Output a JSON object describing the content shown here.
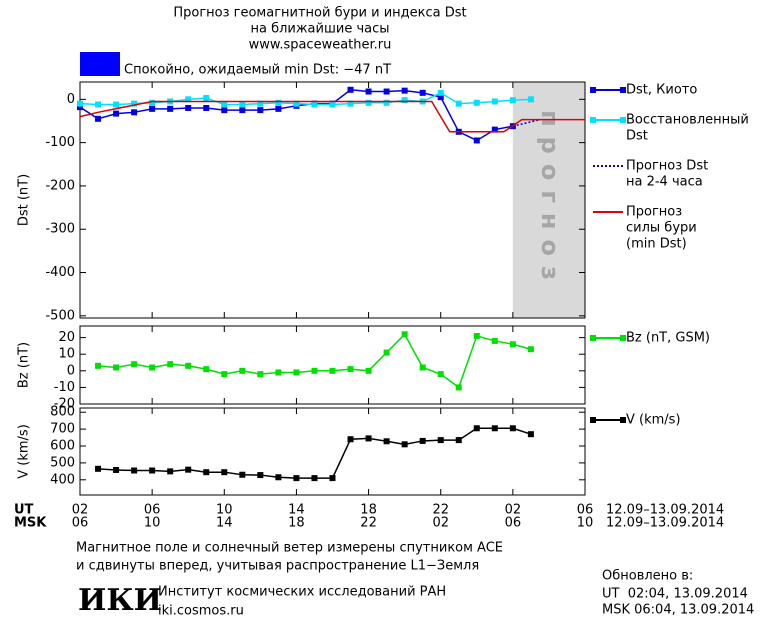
{
  "header": {
    "title": [
      "Прогноз геомагнитной бури и индекса Dst",
      "на ближайшие часы"
    ],
    "site": "www.spaceweather.ru"
  },
  "status": {
    "text": "Спокойно, ожидаемый min Dst: −47 nT",
    "color": "#0000ff"
  },
  "x_axis": {
    "ut_label": "UT",
    "msk_label": "MSK",
    "msk_labels": [
      "06",
      "10",
      "14",
      "18",
      "22",
      "02",
      "06",
      "10"
    ],
    "ut_range": "12.09–13.09.2014",
    "msk_range": "12.09–13.09.2014"
  },
  "chart_data": [
    {
      "type": "line",
      "ylabel": "Dst (nT)",
      "xlim": [
        0,
        28
      ],
      "ylim": [
        -505,
        40
      ],
      "xticks": [
        {
          "value": 0,
          "label": "02"
        },
        {
          "value": 4,
          "label": "06"
        },
        {
          "value": 8,
          "label": "10"
        },
        {
          "value": 12,
          "label": "14"
        },
        {
          "value": 16,
          "label": "18"
        },
        {
          "value": 20,
          "label": "22"
        },
        {
          "value": 24,
          "label": "02"
        },
        {
          "value": 28,
          "label": "06"
        }
      ],
      "yticks": [
        0,
        -100,
        -200,
        -300,
        -400,
        -500
      ],
      "forecast": {
        "x": [
          24,
          28
        ],
        "label": "прогноз",
        "color": "#d9d9d9"
      },
      "series": [
        {
          "name": [
            "Dst, Киото"
          ],
          "color": "#0000e0",
          "marker": "square",
          "dash": "solid",
          "x": [
            0,
            1,
            2,
            3,
            4,
            5,
            6,
            7,
            8,
            9,
            10,
            11,
            12,
            13,
            14,
            15,
            16,
            17,
            18,
            19,
            20,
            21,
            22,
            23,
            24
          ],
          "values": [
            -18,
            -45,
            -33,
            -30,
            -22,
            -22,
            -20,
            -20,
            -25,
            -25,
            -25,
            -22,
            -15,
            -10,
            -10,
            22,
            18,
            18,
            20,
            15,
            5,
            -75,
            -95,
            -70,
            -62
          ]
        },
        {
          "name": [
            "Восстановленный",
            "Dst"
          ],
          "color": "#00e0ff",
          "marker": "square",
          "dash": "solid",
          "x": [
            0,
            1,
            2,
            3,
            4,
            5,
            6,
            7,
            8,
            9,
            10,
            11,
            12,
            13,
            14,
            15,
            16,
            17,
            18,
            19,
            20,
            21,
            22,
            23,
            24,
            25
          ],
          "values": [
            -10,
            -12,
            -12,
            -10,
            -8,
            -5,
            0,
            3,
            -12,
            -12,
            -10,
            -8,
            -10,
            -12,
            -12,
            -10,
            -8,
            -8,
            -2,
            -5,
            15,
            -10,
            -8,
            -5,
            -2,
            0
          ]
        },
        {
          "name": [
            "Прогноз Dst",
            "на 2-4 часа"
          ],
          "color": "#0000e0",
          "marker": "none",
          "dash": "dotted",
          "x": [
            24,
            25.5
          ],
          "values": [
            -62,
            -47
          ]
        },
        {
          "name": [
            "Прогноз",
            "силы бури",
            "(min Dst)"
          ],
          "color": "#e00000",
          "marker": "none",
          "dash": "solid",
          "x": [
            0,
            1,
            4,
            19.5,
            20.5,
            23.5,
            24.5,
            28
          ],
          "values": [
            -40,
            -30,
            -5,
            -5,
            -75,
            -75,
            -47,
            -47
          ]
        }
      ]
    },
    {
      "type": "line",
      "ylabel": "Bz (nT)",
      "xlim": [
        0,
        28
      ],
      "ylim": [
        -20,
        27
      ],
      "xticks": [
        {
          "value": 0,
          "label": "02"
        },
        {
          "value": 4,
          "label": "06"
        },
        {
          "value": 8,
          "label": "10"
        },
        {
          "value": 12,
          "label": "14"
        },
        {
          "value": 16,
          "label": "18"
        },
        {
          "value": 20,
          "label": "22"
        },
        {
          "value": 24,
          "label": "02"
        },
        {
          "value": 28,
          "label": "06"
        }
      ],
      "yticks": [
        20,
        10,
        0,
        -10,
        -20
      ],
      "series": [
        {
          "name": [
            "Bz (nT, GSM)"
          ],
          "color": "#00e000",
          "marker": "square",
          "dash": "solid",
          "x": [
            1,
            2,
            3,
            4,
            5,
            6,
            7,
            8,
            9,
            10,
            11,
            12,
            13,
            14,
            15,
            16,
            17,
            18,
            19,
            20,
            21,
            22,
            23,
            24,
            25
          ],
          "values": [
            3,
            2,
            4,
            2,
            4,
            3,
            1,
            -2,
            0,
            -2,
            -1,
            -1,
            0,
            0,
            1,
            0,
            11,
            22,
            2,
            -2,
            -10,
            21,
            18,
            16,
            13
          ]
        }
      ]
    },
    {
      "type": "line",
      "ylabel": "V (km/s)",
      "xlim": [
        0,
        28
      ],
      "ylim": [
        310,
        825
      ],
      "xticks": [
        {
          "value": 0,
          "label": "02"
        },
        {
          "value": 4,
          "label": "06"
        },
        {
          "value": 8,
          "label": "10"
        },
        {
          "value": 12,
          "label": "14"
        },
        {
          "value": 16,
          "label": "18"
        },
        {
          "value": 20,
          "label": "22"
        },
        {
          "value": 24,
          "label": "02"
        },
        {
          "value": 28,
          "label": "06"
        }
      ],
      "yticks": [
        800,
        700,
        600,
        500,
        400
      ],
      "series": [
        {
          "name": [
            "V (km/s)"
          ],
          "color": "#000000",
          "marker": "square",
          "dash": "solid",
          "x": [
            1,
            2,
            3,
            4,
            5,
            6,
            7,
            8,
            9,
            10,
            11,
            12,
            13,
            14,
            15,
            16,
            17,
            18,
            19,
            20,
            21,
            22,
            23,
            24,
            25
          ],
          "values": [
            465,
            458,
            455,
            455,
            450,
            460,
            445,
            445,
            430,
            428,
            415,
            410,
            410,
            410,
            640,
            645,
            628,
            610,
            630,
            635,
            635,
            705,
            705,
            705,
            670
          ]
        }
      ]
    }
  ],
  "footer": {
    "note": [
      "Магнитное поле и солнечный ветер измерены спутником ACE",
      "и сдвинуты вперед, учитывая распространение L1−Земля"
    ],
    "logo": "ИКИ",
    "institute": "Институт космических исследований РАН",
    "url": "iki.cosmos.ru",
    "updated": [
      "Обновлено в:",
      "UT  02:04, 13.09.2014",
      "MSK 06:04, 13.09.2014"
    ]
  }
}
